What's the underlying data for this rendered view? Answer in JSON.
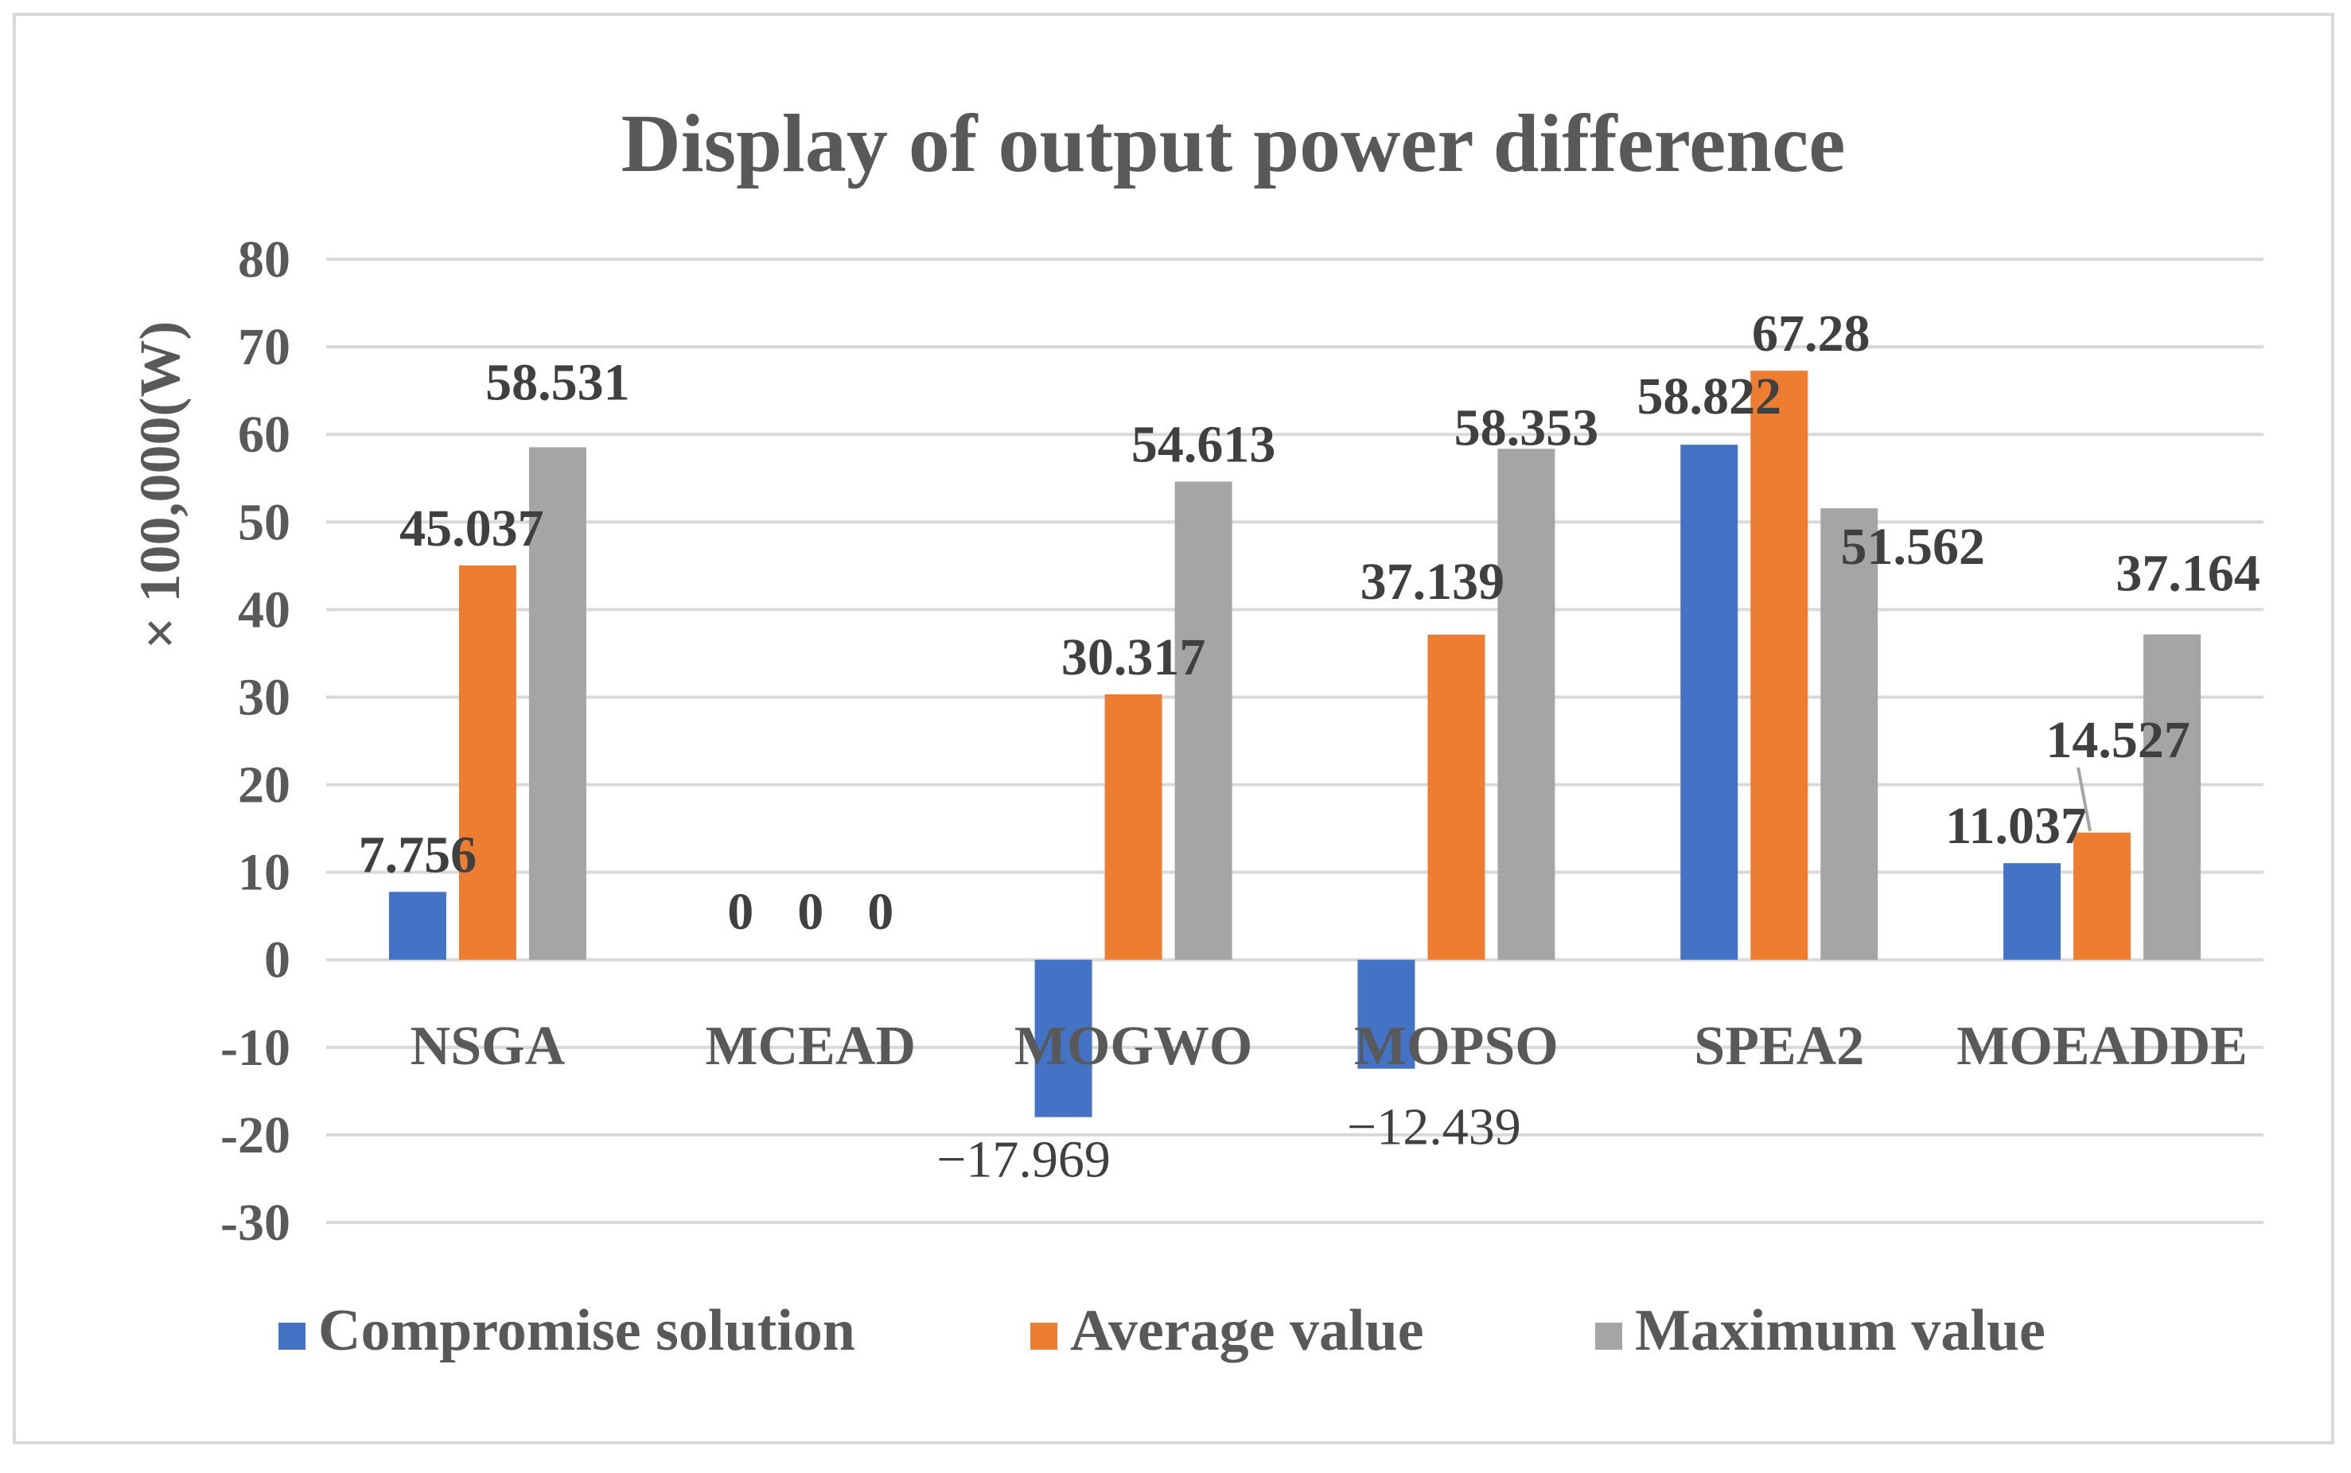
{
  "chart_data": {
    "type": "bar",
    "title": "Display of output power difference",
    "xlabel": "",
    "ylabel": "× 100,000(W)",
    "ylim": [
      -30,
      80
    ],
    "yticks": [
      80,
      70,
      60,
      50,
      40,
      30,
      20,
      10,
      0,
      -10,
      -20,
      -30
    ],
    "grid": true,
    "legend_position": "bottom",
    "categories": [
      "NSGA",
      "MCEAD",
      "MOGWO",
      "MOPSO",
      "SPEA2",
      "MOEADDE"
    ],
    "series": [
      {
        "name": "Compromise solution",
        "color": "#4472c4",
        "values": [
          7.756,
          0,
          -17.969,
          -12.439,
          58.822,
          11.037
        ],
        "labels": [
          "7.756",
          "0",
          "−17.969",
          "−12.439",
          "58.822",
          "11.037"
        ]
      },
      {
        "name": "Average value",
        "color": "#ed7d31",
        "values": [
          45.037,
          0,
          30.317,
          37.139,
          67.28,
          14.527
        ],
        "labels": [
          "45.037",
          "0",
          "30.317",
          "37.139",
          "67.28",
          "14.527"
        ]
      },
      {
        "name": "Maximum value",
        "color": "#a5a5a5",
        "values": [
          58.531,
          0,
          54.613,
          58.353,
          51.562,
          37.164
        ],
        "labels": [
          "58.531",
          "0",
          "54.613",
          "58.353",
          "51.562",
          "37.164"
        ]
      }
    ]
  }
}
